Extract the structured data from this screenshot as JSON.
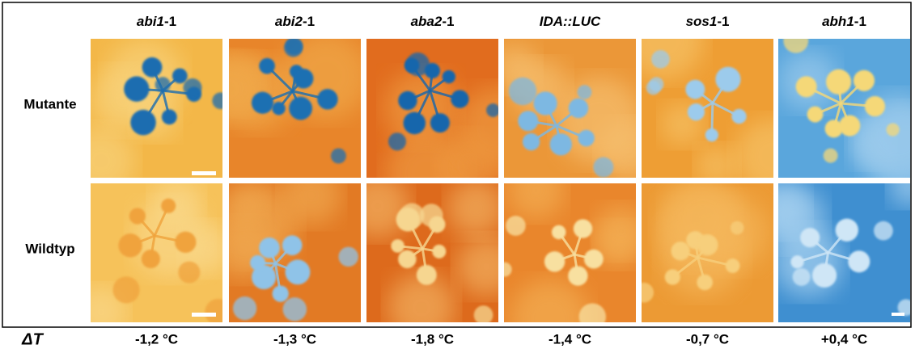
{
  "columns": [
    {
      "gene": "abi1",
      "allele": "-1"
    },
    {
      "gene": "abi2",
      "allele": "-1"
    },
    {
      "gene": "aba2",
      "allele": "-1"
    },
    {
      "gene": "IDA::LUC"
    },
    {
      "gene": "sos1",
      "allele": "-1"
    },
    {
      "gene": "abh1",
      "allele": "-1"
    }
  ],
  "rows": [
    "Mutante",
    "Wildtyp"
  ],
  "delta_label": "ΔT",
  "delta_values": [
    "-1,2 °C",
    "-1,3 °C",
    "-1,8 °C",
    "-1,4 °C",
    "-0,7 °C",
    "+0,4 °C"
  ]
}
